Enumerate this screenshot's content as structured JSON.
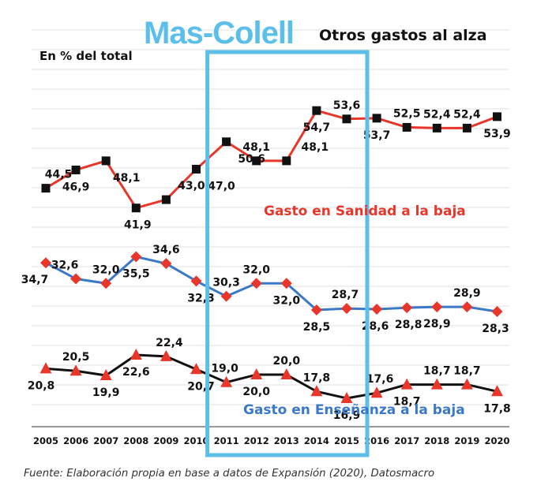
{
  "highlight": {
    "label": "Mas-Colell",
    "years": [
      "2011",
      "2015"
    ],
    "color": "#5bbfea"
  },
  "chart_data": {
    "type": "line",
    "title": "Otros gastos al alza",
    "subtitle": "En % del total",
    "categories": [
      "2005",
      "2006",
      "2007",
      "2008",
      "2009",
      "2010",
      "2011",
      "2012",
      "2013",
      "2014",
      "2015",
      "2016",
      "2017",
      "2018",
      "2019",
      "2020"
    ],
    "series": [
      {
        "name": "",
        "color": "#e8362a",
        "marker": "square",
        "values": [
          44.5,
          46.9,
          48.1,
          41.9,
          43.0,
          47.0,
          50.6,
          48.1,
          48.1,
          54.7,
          53.6,
          53.7,
          52.5,
          52.4,
          52.4,
          53.9
        ],
        "labels": [
          "44,5",
          "46,9",
          "48,1",
          "41,9",
          "43,0",
          "47,0",
          "50,6",
          "48,1",
          "48,1",
          "54,7",
          "53,6",
          "53,7",
          "52,5",
          "52,4",
          "52,4",
          "53,9"
        ]
      },
      {
        "name": "Gasto en Sanidad a la baja",
        "color": "#3a78c8",
        "marker": "diamond",
        "values": [
          34.7,
          32.6,
          32.0,
          35.5,
          34.6,
          32.3,
          30.3,
          32.0,
          32.0,
          28.5,
          28.7,
          28.6,
          28.8,
          28.9,
          28.9,
          28.3
        ],
        "labels": [
          "34,7",
          "32,6",
          "32,0",
          "35,5",
          "34,6",
          "32,3",
          "30,3",
          "32,0",
          "32,0",
          "28,5",
          "28,7",
          "28,6",
          "28,8",
          "28,9",
          "28,9",
          "28,3"
        ]
      },
      {
        "name": "Gasto en Enseñanza a la baja",
        "color": "#111111",
        "marker": "triangle",
        "values": [
          20.8,
          20.5,
          19.9,
          22.6,
          22.4,
          20.7,
          19.0,
          20.0,
          20.0,
          17.8,
          16.9,
          17.6,
          18.7,
          18.7,
          18.7,
          17.8
        ],
        "labels": [
          "20,8",
          "20,5",
          "19,9",
          "22,6",
          "22,4",
          "20,7",
          "19,0",
          "20,0",
          "20,0",
          "17,8",
          "16,9",
          "17,6",
          "18,7",
          "18,7",
          "18,7",
          "17,8"
        ]
      }
    ],
    "grid": true,
    "legend": "inline"
  },
  "source": "Fuente: Elaboración propia en base a datos de Expansión (2020), Datosmacro",
  "series_label_colors": {
    "sanidad": "#e8362a",
    "ensenanza": "#3a78c8"
  }
}
